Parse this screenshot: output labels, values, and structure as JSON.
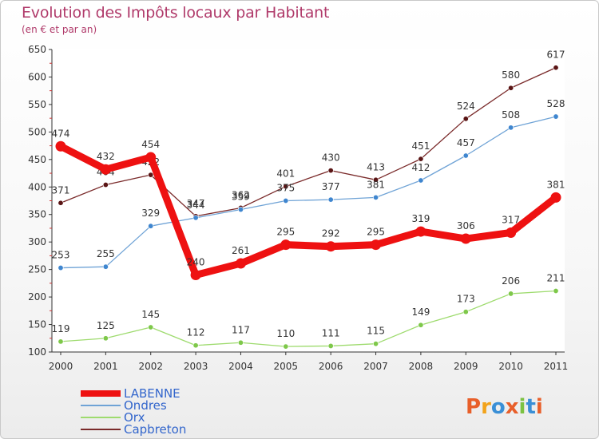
{
  "title": "Evolution des Impôts locaux par Habitant",
  "subtitle": "(en € et par an)",
  "logo": "Proxiti",
  "chart_data": {
    "type": "line",
    "title": "Evolution des Impôts locaux par Habitant",
    "subtitle": "(en € et par an)",
    "x": [
      "2000",
      "2001",
      "2002",
      "2003",
      "2004",
      "2005",
      "2006",
      "2007",
      "2008",
      "2009",
      "2010",
      "2011"
    ],
    "ylim": [
      100,
      650
    ],
    "yticks": [
      100,
      150,
      200,
      250,
      300,
      350,
      400,
      450,
      500,
      550,
      600,
      650
    ],
    "series": [
      {
        "name": "Capbreton",
        "color": "#7a2a2a",
        "dot": "#5a1515",
        "width": 1.3,
        "values": [
          371,
          404,
          422,
          347,
          362,
          401,
          430,
          413,
          451,
          524,
          580,
          617
        ]
      },
      {
        "name": "Ondres",
        "color": "#6fa3d6",
        "dot": "#3f86cf",
        "width": 1.3,
        "values": [
          253,
          255,
          329,
          344,
          359,
          375,
          377,
          381,
          412,
          457,
          508,
          528
        ]
      },
      {
        "name": "Orx",
        "color": "#9edb6e",
        "dot": "#7ec84a",
        "width": 1.3,
        "values": [
          119,
          125,
          145,
          112,
          117,
          110,
          111,
          115,
          149,
          173,
          206,
          211
        ]
      },
      {
        "name": "LABENNE",
        "color": "#ee1111",
        "dot": "#ee1111",
        "width": 9,
        "values": [
          474,
          432,
          454,
          240,
          261,
          295,
          292,
          295,
          319,
          306,
          317,
          381
        ]
      }
    ],
    "legend": [
      "LABENNE",
      "Ondres",
      "Orx",
      "Capbreton"
    ],
    "legend_position": "bottom-left"
  }
}
